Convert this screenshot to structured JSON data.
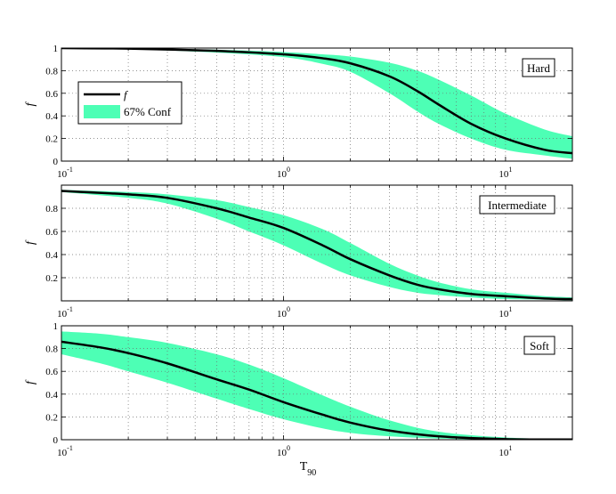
{
  "figure": {
    "xlabel": "T",
    "xlabel_sub": "90"
  },
  "colors": {
    "band": "#4dffb5",
    "line": "#000000",
    "grid": "#6e6e6e"
  },
  "legend": {
    "line_label": "f",
    "band_label": "67% Conf"
  },
  "chart_data": [
    {
      "type": "line",
      "label": "Hard",
      "ylabel": "f",
      "xscale": "log",
      "xlim": [
        0.1,
        20
      ],
      "ylim": [
        0,
        1
      ],
      "xticks": [
        0.1,
        1,
        10
      ],
      "xtick_labels": [
        [
          "10",
          "-1"
        ],
        [
          "10",
          "0"
        ],
        [
          "10",
          "1"
        ]
      ],
      "yticks": [
        0,
        0.2,
        0.4,
        0.6,
        0.8,
        1
      ],
      "ytick_labels": [
        "0",
        "0.2",
        "0.4",
        "0.6",
        "0.8",
        "1"
      ],
      "grid": true,
      "legend_position": "upper-left",
      "series": [
        {
          "x": [
            0.1,
            0.2,
            0.5,
            1,
            1.5,
            2,
            3,
            4,
            5,
            7,
            10,
            15,
            20
          ],
          "y": [
            1.0,
            0.995,
            0.975,
            0.945,
            0.91,
            0.865,
            0.75,
            0.62,
            0.5,
            0.33,
            0.2,
            0.1,
            0.07
          ],
          "lower": [
            1.0,
            0.99,
            0.96,
            0.92,
            0.86,
            0.79,
            0.6,
            0.44,
            0.33,
            0.2,
            0.1,
            0.05,
            0.02
          ],
          "upper": [
            1.0,
            0.998,
            0.985,
            0.965,
            0.945,
            0.925,
            0.87,
            0.8,
            0.72,
            0.58,
            0.42,
            0.28,
            0.22
          ]
        }
      ]
    },
    {
      "type": "line",
      "label": "Intermediate",
      "ylabel": "f",
      "xscale": "log",
      "xlim": [
        0.1,
        20
      ],
      "ylim": [
        0,
        1
      ],
      "xticks": [
        0.1,
        1,
        10
      ],
      "xtick_labels": [
        [
          "10",
          "-1"
        ],
        [
          "10",
          "0"
        ],
        [
          "10",
          "1"
        ]
      ],
      "yticks": [
        0.2,
        0.4,
        0.6,
        0.8
      ],
      "ytick_labels": [
        "0.2",
        "0.4",
        "0.6",
        "0.8"
      ],
      "grid": true,
      "series": [
        {
          "x": [
            0.1,
            0.2,
            0.3,
            0.5,
            0.7,
            1,
            1.5,
            2,
            3,
            4,
            5,
            7,
            10,
            15,
            20
          ],
          "y": [
            0.95,
            0.92,
            0.89,
            0.8,
            0.72,
            0.63,
            0.48,
            0.36,
            0.22,
            0.14,
            0.1,
            0.06,
            0.04,
            0.02,
            0.015
          ],
          "lower": [
            0.94,
            0.89,
            0.84,
            0.71,
            0.6,
            0.48,
            0.32,
            0.22,
            0.12,
            0.07,
            0.05,
            0.03,
            0.015,
            0.01,
            0.005
          ],
          "upper": [
            0.96,
            0.94,
            0.92,
            0.87,
            0.81,
            0.74,
            0.62,
            0.5,
            0.32,
            0.22,
            0.16,
            0.1,
            0.07,
            0.04,
            0.03
          ]
        }
      ]
    },
    {
      "type": "line",
      "label": "Soft",
      "ylabel": "f",
      "xscale": "log",
      "xlim": [
        0.1,
        20
      ],
      "ylim": [
        0,
        1
      ],
      "xticks": [
        0.1,
        1,
        10
      ],
      "xtick_labels": [
        [
          "10",
          "-1"
        ],
        [
          "10",
          "0"
        ],
        [
          "10",
          "1"
        ]
      ],
      "yticks": [
        0,
        0.2,
        0.4,
        0.6,
        0.8,
        1
      ],
      "ytick_labels": [
        "0",
        "0.2",
        "0.4",
        "0.6",
        "0.8",
        "1"
      ],
      "grid": true,
      "series": [
        {
          "x": [
            0.1,
            0.15,
            0.2,
            0.3,
            0.5,
            0.7,
            1,
            1.5,
            2,
            3,
            5,
            10,
            20
          ],
          "y": [
            0.86,
            0.81,
            0.76,
            0.67,
            0.53,
            0.44,
            0.33,
            0.22,
            0.15,
            0.08,
            0.03,
            0.005,
            0.002
          ],
          "lower": [
            0.75,
            0.67,
            0.6,
            0.5,
            0.36,
            0.27,
            0.18,
            0.1,
            0.06,
            0.03,
            0.01,
            0.002,
            0.0
          ],
          "upper": [
            0.95,
            0.93,
            0.9,
            0.85,
            0.75,
            0.66,
            0.54,
            0.39,
            0.29,
            0.17,
            0.07,
            0.02,
            0.005
          ]
        }
      ]
    }
  ]
}
